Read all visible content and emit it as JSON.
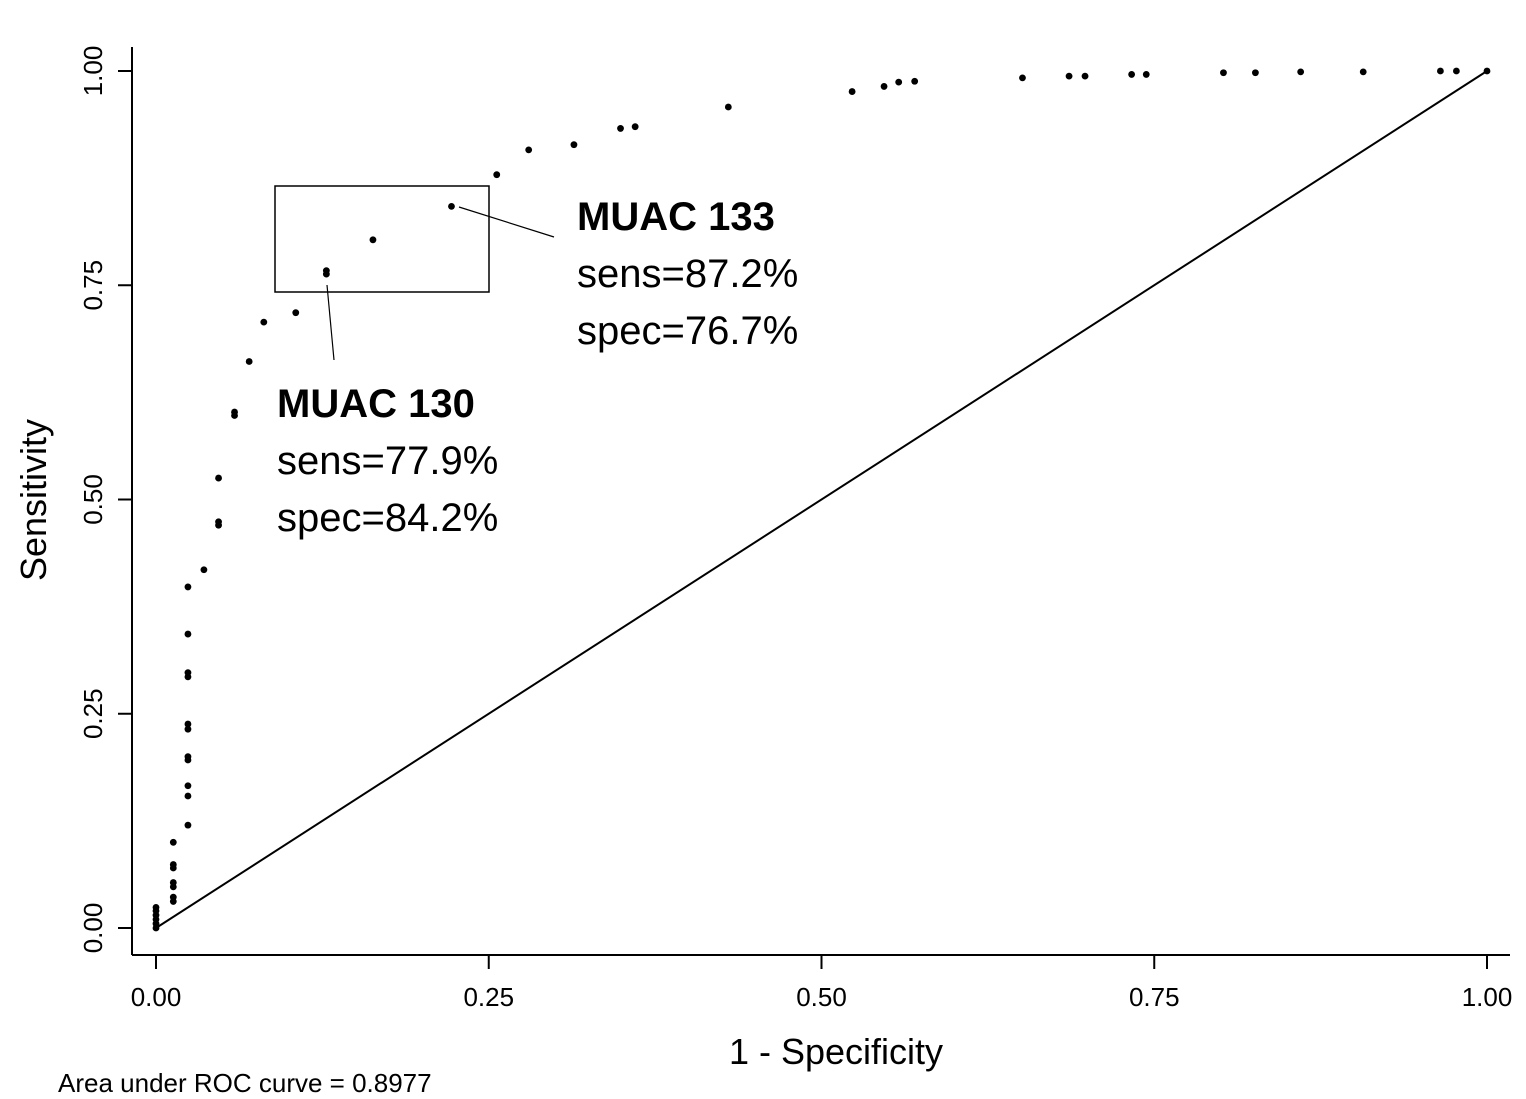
{
  "chart_data": {
    "type": "scatter",
    "xlabel": "1 - Specificity",
    "ylabel": "Sensitivity",
    "xlim": [
      0,
      1
    ],
    "ylim": [
      0,
      1
    ],
    "x_ticks": [
      "0.00",
      "0.25",
      "0.50",
      "0.75",
      "1.00"
    ],
    "y_ticks": [
      "0.00",
      "0.25",
      "0.50",
      "0.75",
      "1.00"
    ],
    "reference_line": {
      "from": [
        0,
        0
      ],
      "to": [
        1,
        1
      ]
    },
    "footer": "Area under ROC curve = 0.8977",
    "points": [
      [
        0.0,
        0.0
      ],
      [
        0.0,
        0.005
      ],
      [
        0.0,
        0.01
      ],
      [
        0.0,
        0.015
      ],
      [
        0.0,
        0.02
      ],
      [
        0.0,
        0.024
      ],
      [
        0.013,
        0.031
      ],
      [
        0.013,
        0.036
      ],
      [
        0.013,
        0.048
      ],
      [
        0.013,
        0.053
      ],
      [
        0.013,
        0.07
      ],
      [
        0.013,
        0.074
      ],
      [
        0.013,
        0.1
      ],
      [
        0.024,
        0.12
      ],
      [
        0.024,
        0.154
      ],
      [
        0.024,
        0.166
      ],
      [
        0.024,
        0.196
      ],
      [
        0.024,
        0.2
      ],
      [
        0.024,
        0.232
      ],
      [
        0.024,
        0.238
      ],
      [
        0.024,
        0.293
      ],
      [
        0.024,
        0.298
      ],
      [
        0.024,
        0.343
      ],
      [
        0.024,
        0.398
      ],
      [
        0.036,
        0.418
      ],
      [
        0.047,
        0.47
      ],
      [
        0.047,
        0.474
      ],
      [
        0.047,
        0.525
      ],
      [
        0.059,
        0.598
      ],
      [
        0.059,
        0.602
      ],
      [
        0.07,
        0.661
      ],
      [
        0.081,
        0.707
      ],
      [
        0.105,
        0.718
      ],
      [
        0.128,
        0.763
      ],
      [
        0.128,
        0.767
      ],
      [
        0.163,
        0.803
      ],
      [
        0.222,
        0.842
      ],
      [
        0.256,
        0.879
      ],
      [
        0.28,
        0.908
      ],
      [
        0.314,
        0.914
      ],
      [
        0.349,
        0.933
      ],
      [
        0.36,
        0.935
      ],
      [
        0.43,
        0.958
      ],
      [
        0.523,
        0.976
      ],
      [
        0.547,
        0.982
      ],
      [
        0.558,
        0.987
      ],
      [
        0.57,
        0.988
      ],
      [
        0.651,
        0.992
      ],
      [
        0.686,
        0.994
      ],
      [
        0.698,
        0.994
      ],
      [
        0.733,
        0.996
      ],
      [
        0.744,
        0.996
      ],
      [
        0.802,
        0.998
      ],
      [
        0.826,
        0.998
      ],
      [
        0.86,
        0.999
      ],
      [
        0.907,
        0.999
      ],
      [
        0.965,
        1.0
      ],
      [
        0.977,
        1.0
      ],
      [
        1.0,
        1.0
      ]
    ],
    "annotations": [
      {
        "title": "MUAC 133",
        "lines": [
          "sens=87.2%",
          "spec=76.7%"
        ]
      },
      {
        "title": "MUAC 130",
        "lines": [
          "sens=77.9%",
          "spec=84.2%"
        ]
      }
    ]
  }
}
